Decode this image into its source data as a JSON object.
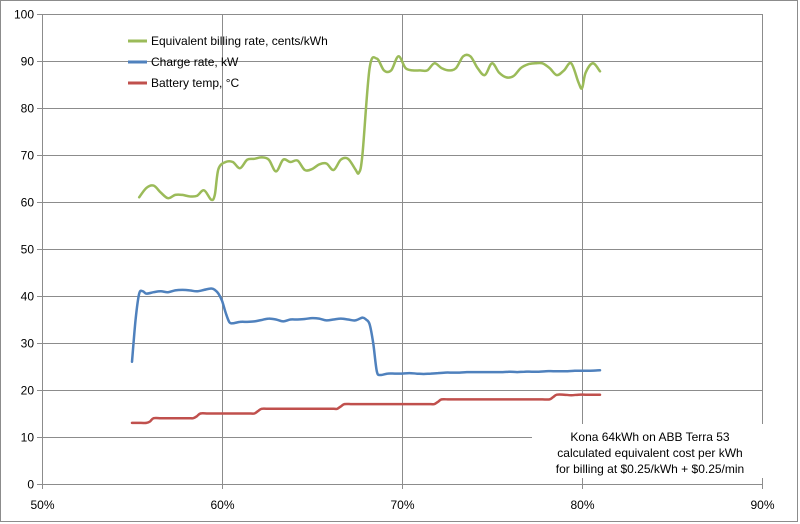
{
  "chart_data": {
    "type": "line",
    "title": "",
    "xlabel": "",
    "ylabel": "",
    "xlim": [
      0.5,
      0.9
    ],
    "ylim": [
      0,
      100
    ],
    "x_ticks": [
      {
        "value": 0.5,
        "label": "50%"
      },
      {
        "value": 0.6,
        "label": "60%"
      },
      {
        "value": 0.7,
        "label": "70%"
      },
      {
        "value": 0.8,
        "label": "80%"
      },
      {
        "value": 0.9,
        "label": "90%"
      }
    ],
    "y_ticks": [
      {
        "value": 0,
        "label": "0"
      },
      {
        "value": 10,
        "label": "10"
      },
      {
        "value": 20,
        "label": "20"
      },
      {
        "value": 30,
        "label": "30"
      },
      {
        "value": 40,
        "label": "40"
      },
      {
        "value": 50,
        "label": "50"
      },
      {
        "value": 60,
        "label": "60"
      },
      {
        "value": 70,
        "label": "70"
      },
      {
        "value": 80,
        "label": "80"
      },
      {
        "value": 90,
        "label": "90"
      },
      {
        "value": 100,
        "label": "100"
      }
    ],
    "grid": "vertical and horizontal",
    "legend_position": "top-left",
    "series": [
      {
        "name": "Equivalent billing rate, cents/kWh",
        "color": "#9bbb59",
        "points": [
          [
            0.554,
            61.0
          ],
          [
            0.558,
            63.0
          ],
          [
            0.562,
            63.5
          ],
          [
            0.566,
            62.0
          ],
          [
            0.57,
            60.8
          ],
          [
            0.574,
            61.5
          ],
          [
            0.578,
            61.5
          ],
          [
            0.582,
            61.2
          ],
          [
            0.586,
            61.3
          ],
          [
            0.59,
            62.5
          ],
          [
            0.594,
            60.5
          ],
          [
            0.596,
            61.5
          ],
          [
            0.598,
            67.0
          ],
          [
            0.602,
            68.5
          ],
          [
            0.606,
            68.5
          ],
          [
            0.61,
            67.2
          ],
          [
            0.614,
            69.0
          ],
          [
            0.618,
            69.2
          ],
          [
            0.622,
            69.5
          ],
          [
            0.626,
            69.0
          ],
          [
            0.63,
            66.5
          ],
          [
            0.634,
            69.0
          ],
          [
            0.638,
            68.5
          ],
          [
            0.642,
            68.8
          ],
          [
            0.646,
            66.8
          ],
          [
            0.65,
            67.0
          ],
          [
            0.654,
            68.0
          ],
          [
            0.658,
            68.2
          ],
          [
            0.662,
            66.8
          ],
          [
            0.666,
            69.0
          ],
          [
            0.67,
            69.2
          ],
          [
            0.674,
            67.0
          ],
          [
            0.676,
            66.2
          ],
          [
            0.678,
            70.0
          ],
          [
            0.682,
            88.5
          ],
          [
            0.686,
            90.5
          ],
          [
            0.69,
            88.0
          ],
          [
            0.694,
            88.0
          ],
          [
            0.698,
            91.0
          ],
          [
            0.702,
            88.5
          ],
          [
            0.706,
            88.0
          ],
          [
            0.71,
            88.0
          ],
          [
            0.714,
            88.0
          ],
          [
            0.718,
            89.5
          ],
          [
            0.722,
            88.5
          ],
          [
            0.726,
            88.0
          ],
          [
            0.73,
            88.5
          ],
          [
            0.734,
            91.0
          ],
          [
            0.738,
            91.0
          ],
          [
            0.742,
            88.5
          ],
          [
            0.746,
            87.0
          ],
          [
            0.75,
            89.5
          ],
          [
            0.754,
            87.5
          ],
          [
            0.758,
            86.5
          ],
          [
            0.762,
            86.8
          ],
          [
            0.766,
            88.5
          ],
          [
            0.77,
            89.3
          ],
          [
            0.774,
            89.5
          ],
          [
            0.778,
            89.5
          ],
          [
            0.782,
            88.5
          ],
          [
            0.786,
            87.0
          ],
          [
            0.79,
            88.0
          ],
          [
            0.794,
            89.5
          ],
          [
            0.798,
            85.5
          ],
          [
            0.8,
            84.2
          ],
          [
            0.802,
            87.5
          ],
          [
            0.806,
            89.5
          ],
          [
            0.81,
            87.8
          ]
        ]
      },
      {
        "name": "Charge rate, kW",
        "color": "#4f81bd",
        "points": [
          [
            0.55,
            26.0
          ],
          [
            0.552,
            35.0
          ],
          [
            0.554,
            40.5
          ],
          [
            0.556,
            41.0
          ],
          [
            0.558,
            40.5
          ],
          [
            0.562,
            40.8
          ],
          [
            0.566,
            41.0
          ],
          [
            0.57,
            40.8
          ],
          [
            0.574,
            41.2
          ],
          [
            0.578,
            41.3
          ],
          [
            0.582,
            41.2
          ],
          [
            0.586,
            41.0
          ],
          [
            0.59,
            41.3
          ],
          [
            0.594,
            41.6
          ],
          [
            0.596,
            41.3
          ],
          [
            0.598,
            40.5
          ],
          [
            0.6,
            39.0
          ],
          [
            0.602,
            36.5
          ],
          [
            0.604,
            34.5
          ],
          [
            0.606,
            34.2
          ],
          [
            0.61,
            34.5
          ],
          [
            0.614,
            34.5
          ],
          [
            0.618,
            34.6
          ],
          [
            0.622,
            34.9
          ],
          [
            0.626,
            35.2
          ],
          [
            0.63,
            35.0
          ],
          [
            0.634,
            34.6
          ],
          [
            0.638,
            35.0
          ],
          [
            0.642,
            35.0
          ],
          [
            0.646,
            35.1
          ],
          [
            0.65,
            35.3
          ],
          [
            0.654,
            35.2
          ],
          [
            0.658,
            34.8
          ],
          [
            0.662,
            35.0
          ],
          [
            0.666,
            35.2
          ],
          [
            0.67,
            35.0
          ],
          [
            0.674,
            34.8
          ],
          [
            0.678,
            35.4
          ],
          [
            0.68,
            35.0
          ],
          [
            0.682,
            34.0
          ],
          [
            0.684,
            30.0
          ],
          [
            0.686,
            24.0
          ],
          [
            0.688,
            23.2
          ],
          [
            0.692,
            23.5
          ],
          [
            0.696,
            23.5
          ],
          [
            0.7,
            23.5
          ],
          [
            0.704,
            23.6
          ],
          [
            0.708,
            23.5
          ],
          [
            0.712,
            23.4
          ],
          [
            0.716,
            23.5
          ],
          [
            0.72,
            23.6
          ],
          [
            0.724,
            23.7
          ],
          [
            0.728,
            23.7
          ],
          [
            0.732,
            23.7
          ],
          [
            0.736,
            23.8
          ],
          [
            0.74,
            23.8
          ],
          [
            0.744,
            23.8
          ],
          [
            0.748,
            23.8
          ],
          [
            0.752,
            23.8
          ],
          [
            0.756,
            23.8
          ],
          [
            0.76,
            23.9
          ],
          [
            0.764,
            23.8
          ],
          [
            0.768,
            23.9
          ],
          [
            0.772,
            23.9
          ],
          [
            0.776,
            23.9
          ],
          [
            0.78,
            24.0
          ],
          [
            0.784,
            24.0
          ],
          [
            0.788,
            24.0
          ],
          [
            0.792,
            24.0
          ],
          [
            0.796,
            24.1
          ],
          [
            0.8,
            24.1
          ],
          [
            0.804,
            24.1
          ],
          [
            0.81,
            24.2
          ]
        ]
      },
      {
        "name": "Battery temp, °C",
        "color": "#c0504d",
        "points": [
          [
            0.55,
            13.0
          ],
          [
            0.555,
            13.0
          ],
          [
            0.558,
            13.0
          ],
          [
            0.56,
            13.3
          ],
          [
            0.562,
            14.0
          ],
          [
            0.566,
            14.0
          ],
          [
            0.57,
            14.0
          ],
          [
            0.574,
            14.0
          ],
          [
            0.578,
            14.0
          ],
          [
            0.582,
            14.0
          ],
          [
            0.584,
            14.0
          ],
          [
            0.586,
            14.4
          ],
          [
            0.588,
            15.0
          ],
          [
            0.592,
            15.0
          ],
          [
            0.596,
            15.0
          ],
          [
            0.6,
            15.0
          ],
          [
            0.604,
            15.0
          ],
          [
            0.608,
            15.0
          ],
          [
            0.612,
            15.0
          ],
          [
            0.616,
            15.0
          ],
          [
            0.618,
            15.0
          ],
          [
            0.62,
            15.5
          ],
          [
            0.622,
            16.0
          ],
          [
            0.626,
            16.0
          ],
          [
            0.63,
            16.0
          ],
          [
            0.634,
            16.0
          ],
          [
            0.638,
            16.0
          ],
          [
            0.642,
            16.0
          ],
          [
            0.646,
            16.0
          ],
          [
            0.65,
            16.0
          ],
          [
            0.654,
            16.0
          ],
          [
            0.658,
            16.0
          ],
          [
            0.662,
            16.0
          ],
          [
            0.664,
            16.0
          ],
          [
            0.666,
            16.5
          ],
          [
            0.668,
            17.0
          ],
          [
            0.672,
            17.0
          ],
          [
            0.676,
            17.0
          ],
          [
            0.68,
            17.0
          ],
          [
            0.684,
            17.0
          ],
          [
            0.688,
            17.0
          ],
          [
            0.692,
            17.0
          ],
          [
            0.696,
            17.0
          ],
          [
            0.7,
            17.0
          ],
          [
            0.704,
            17.0
          ],
          [
            0.708,
            17.0
          ],
          [
            0.712,
            17.0
          ],
          [
            0.716,
            17.0
          ],
          [
            0.718,
            17.0
          ],
          [
            0.72,
            17.5
          ],
          [
            0.722,
            18.0
          ],
          [
            0.726,
            18.0
          ],
          [
            0.73,
            18.0
          ],
          [
            0.734,
            18.0
          ],
          [
            0.738,
            18.0
          ],
          [
            0.742,
            18.0
          ],
          [
            0.746,
            18.0
          ],
          [
            0.75,
            18.0
          ],
          [
            0.754,
            18.0
          ],
          [
            0.758,
            18.0
          ],
          [
            0.762,
            18.0
          ],
          [
            0.766,
            18.0
          ],
          [
            0.77,
            18.0
          ],
          [
            0.774,
            18.0
          ],
          [
            0.778,
            18.0
          ],
          [
            0.782,
            18.0
          ],
          [
            0.784,
            18.5
          ],
          [
            0.786,
            19.0
          ],
          [
            0.79,
            19.0
          ],
          [
            0.794,
            18.9
          ],
          [
            0.798,
            19.0
          ],
          [
            0.802,
            19.0
          ],
          [
            0.806,
            19.0
          ],
          [
            0.81,
            19.0
          ]
        ]
      }
    ],
    "annotation": [
      "Kona 64kWh on ABB Terra 53",
      "calculated equivalent cost per kWh",
      "for billing at $0.25/kWh + $0.25/min"
    ]
  }
}
